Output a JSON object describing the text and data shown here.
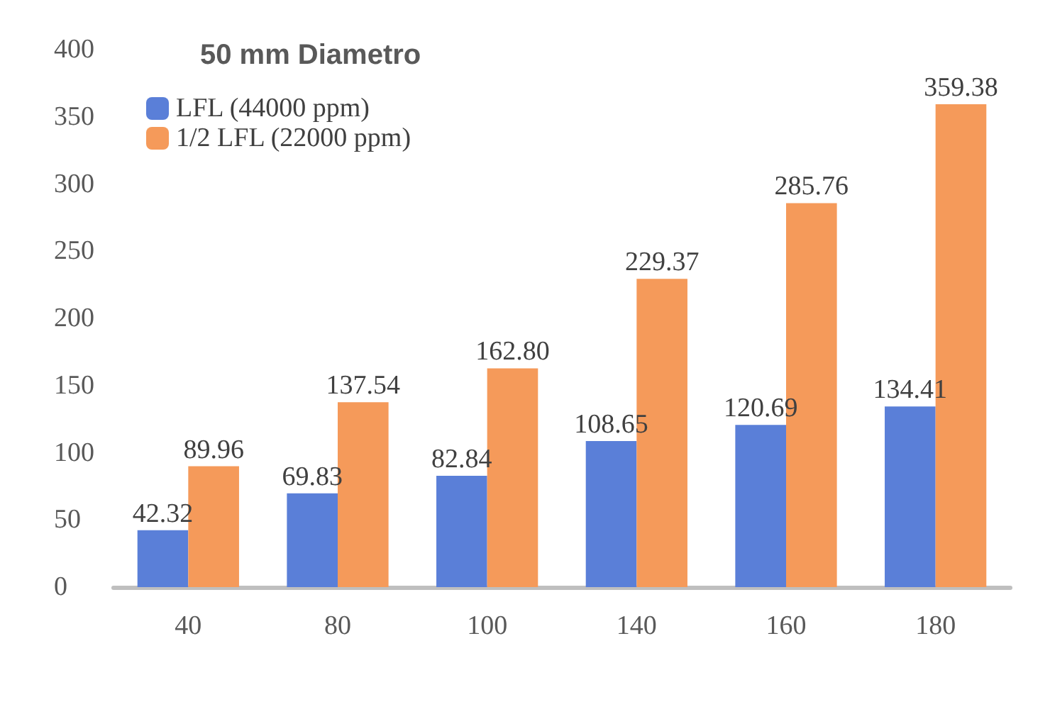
{
  "chart_data": {
    "type": "bar",
    "title": "50 mm Diametro",
    "categories": [
      "40",
      "80",
      "100",
      "140",
      "160",
      "180"
    ],
    "series": [
      {
        "name": "LFL (44000 ppm)",
        "color": "#5a7fd8",
        "values": [
          42.32,
          69.83,
          82.84,
          108.65,
          120.69,
          134.41
        ],
        "value_labels": [
          "42.32",
          "69.83",
          "82.84",
          "108.65",
          "120.69",
          "134.41"
        ]
      },
      {
        "name": "1/2 LFL (22000 ppm)",
        "color": "#f59a5a",
        "values": [
          89.96,
          137.54,
          162.8,
          229.37,
          285.76,
          359.38
        ],
        "value_labels": [
          "89.96",
          "137.54",
          "162.80",
          "229.37",
          "285.76",
          "359.38"
        ]
      }
    ],
    "ylim": [
      0,
      400
    ],
    "yticks": [
      0,
      50,
      100,
      150,
      200,
      250,
      300,
      350,
      400
    ],
    "grid": false,
    "legend": "top left"
  }
}
